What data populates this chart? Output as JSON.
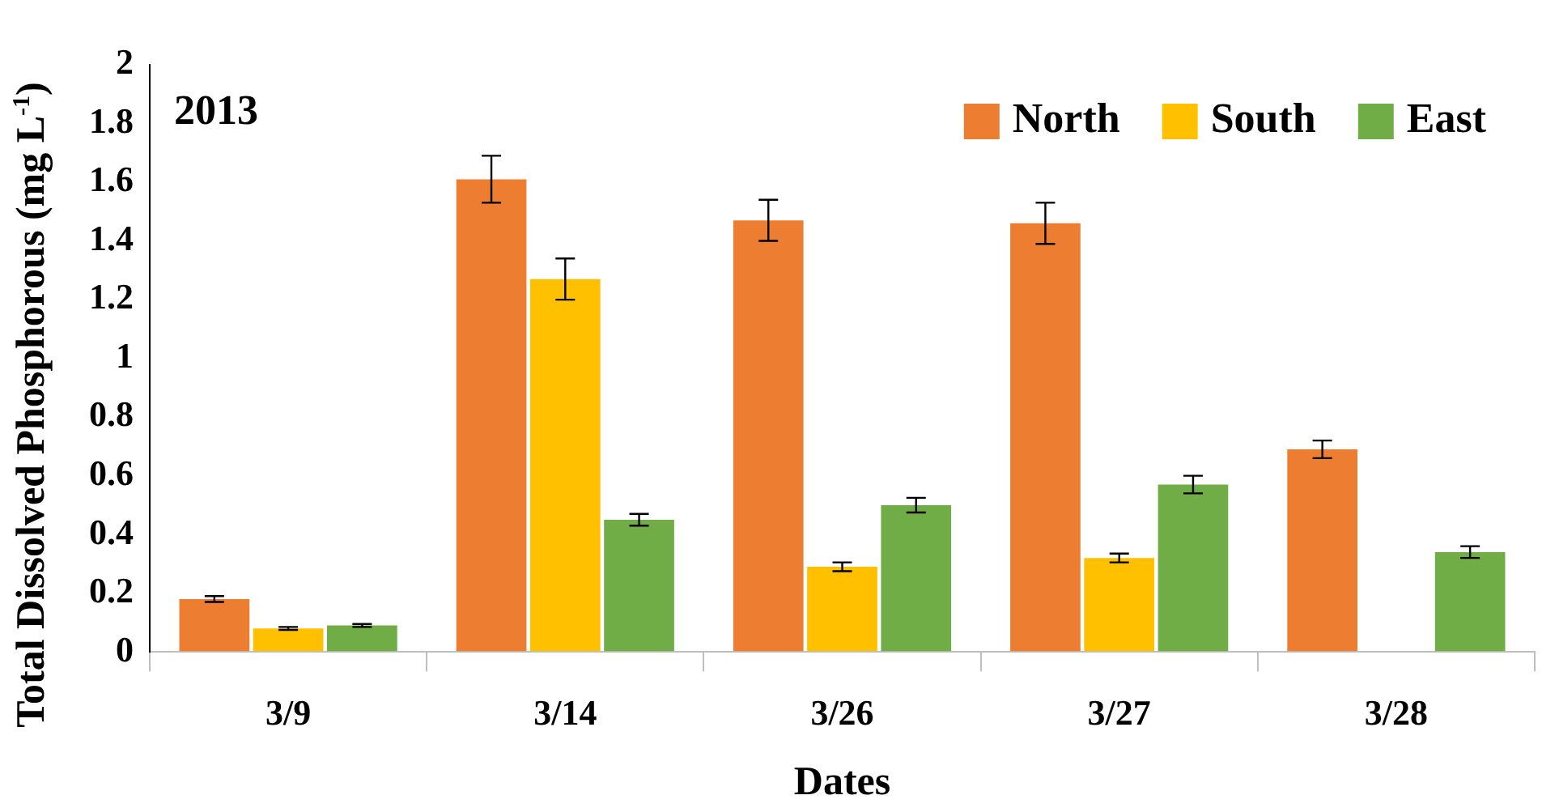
{
  "chart_data": {
    "type": "bar",
    "xlabel": "Dates",
    "ylabel": "Total Dissolved Phosphorous (mg L$^{-1}$)",
    "annotations": [
      "2013"
    ],
    "categories": [
      "3/9",
      "3/14",
      "3/26",
      "3/27",
      "3/28"
    ],
    "series": [
      {
        "name": "North",
        "color": "#ed7d31",
        "values": [
          0.18,
          1.61,
          1.47,
          1.46,
          0.69
        ],
        "errors": [
          0.01,
          0.08,
          0.07,
          0.07,
          0.03
        ]
      },
      {
        "name": "South",
        "color": "#ffc000",
        "values": [
          0.08,
          1.27,
          0.29,
          0.32,
          null
        ],
        "errors": [
          0.005,
          0.07,
          0.015,
          0.015,
          null
        ]
      },
      {
        "name": "East",
        "color": "#70ad47",
        "values": [
          0.09,
          0.45,
          0.5,
          0.57,
          0.34
        ],
        "errors": [
          0.005,
          0.02,
          0.025,
          0.03,
          0.02
        ]
      }
    ],
    "ylim": [
      0,
      2
    ],
    "yticks": [
      0,
      0.2,
      0.4,
      0.6,
      0.8,
      1,
      1.2,
      1.4,
      1.6,
      1.8,
      2
    ],
    "grid": false,
    "legend": "top right"
  }
}
